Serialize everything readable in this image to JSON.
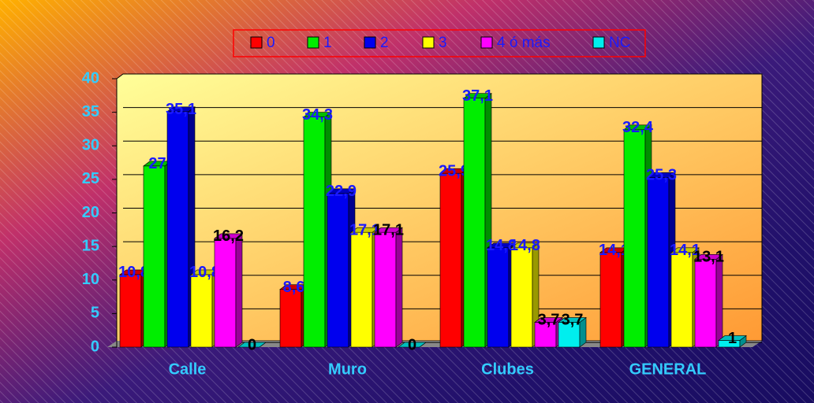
{
  "chart_data": {
    "type": "bar3d",
    "categories": [
      "Calle",
      "Muro",
      "Clubes",
      "GENERAL"
    ],
    "series": [
      {
        "name": "0",
        "color": "#ff0000",
        "label_color": "#1a1aff",
        "values": [
          10.8,
          8.6,
          25.9,
          14.1
        ],
        "value_labels": [
          "10,8",
          "8,6",
          "25,9",
          "14,1"
        ]
      },
      {
        "name": "1",
        "color": "#00ee00",
        "label_color": "#1a1aff",
        "values": [
          27,
          34.3,
          37.1,
          32.4
        ],
        "value_labels": [
          "27",
          "34,3",
          "37,1",
          "32,4"
        ]
      },
      {
        "name": "2",
        "color": "#0000ee",
        "label_color": "#1a1aff",
        "values": [
          35.1,
          22.9,
          14.8,
          25.3
        ],
        "value_labels": [
          "35,1",
          "22,9",
          "14,8",
          "25,3"
        ]
      },
      {
        "name": "3",
        "color": "#ffff00",
        "label_color": "#1a1aff",
        "values": [
          10.8,
          17.1,
          14.8,
          14.1
        ],
        "value_labels": [
          "10,8",
          "17,1",
          "14,8",
          "14,1"
        ]
      },
      {
        "name": "4 ó más",
        "color": "#ff00ff",
        "label_color": "#000000",
        "values": [
          16.2,
          17.1,
          3.7,
          13.1
        ],
        "value_labels": [
          "16,2",
          "17,1",
          "3,7",
          "13,1"
        ]
      },
      {
        "name": "NC",
        "color": "#00eeee",
        "label_color": "#000000",
        "values": [
          0,
          0,
          3.7,
          1
        ],
        "value_labels": [
          "0",
          "0",
          "3,7",
          "1"
        ]
      }
    ],
    "ylim": [
      0,
      40
    ],
    "yticks": [
      0,
      5,
      10,
      15,
      20,
      25,
      30,
      35,
      40
    ],
    "grid": true
  }
}
